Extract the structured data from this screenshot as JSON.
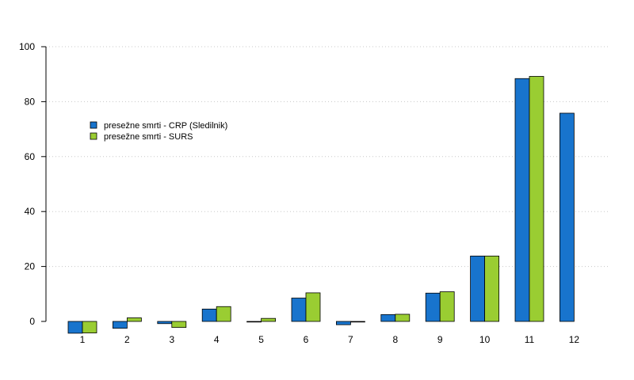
{
  "chart_data": {
    "type": "bar",
    "title": "",
    "xlabel": "",
    "ylabel": "",
    "categories": [
      "1",
      "2",
      "3",
      "4",
      "5",
      "6",
      "7",
      "8",
      "9",
      "10",
      "11",
      "12"
    ],
    "ylim": [
      -4,
      100
    ],
    "yticks": [
      0,
      20,
      40,
      60,
      80,
      100
    ],
    "grid": "horizontal dotted",
    "legend_position": "top-left",
    "series": [
      {
        "name": "presežne smrti - CRP (Sledilnik)",
        "color": "#1874CD",
        "values": [
          -4.3,
          -2.5,
          -0.8,
          4.5,
          -0.2,
          8.5,
          -1.2,
          2.5,
          10.3,
          23.8,
          88.4,
          75.8
        ]
      },
      {
        "name": "presežne smrti - SURS",
        "color": "#9ACD32",
        "values": [
          -4.2,
          1.3,
          -2.2,
          5.4,
          1.1,
          10.4,
          -0.2,
          2.6,
          10.8,
          23.8,
          89.2,
          null
        ]
      }
    ]
  }
}
